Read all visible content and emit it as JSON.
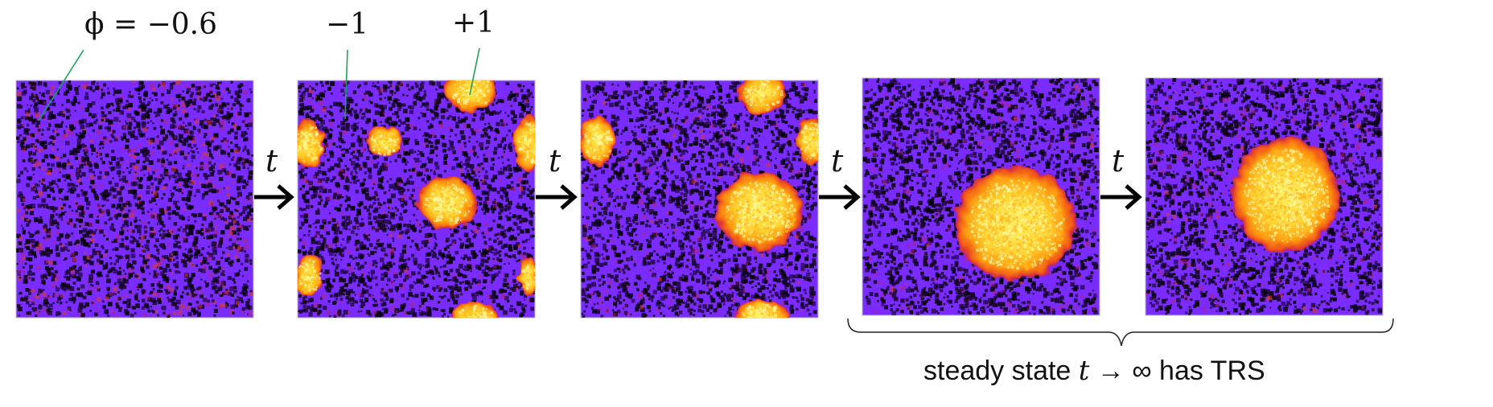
{
  "labels": {
    "phi": "ϕ = −0.6",
    "minus_one": "−1",
    "plus_one": "+1"
  },
  "arrow_label": "t",
  "caption": {
    "prefix": "steady state ",
    "variable": "t",
    "suffix": " → ∞ has TRS"
  },
  "colors": {
    "background_phase": "#7a2cff",
    "noise_dark": "#0a0010",
    "noise_magenta": "#b02080",
    "droplet_edge": "#e03a20",
    "droplet_mid": "#ff9a10",
    "droplet_core": "#ffe840",
    "pointer_line": "#1aa35a",
    "frame": "#bbbbbb"
  },
  "panels": [
    {
      "name": "panel-1",
      "stage": "initial"
    },
    {
      "name": "panel-2",
      "stage": "nucleation"
    },
    {
      "name": "panel-3",
      "stage": "coarsening"
    },
    {
      "name": "panel-4",
      "stage": "steady"
    },
    {
      "name": "panel-5",
      "stage": "steady"
    }
  ]
}
